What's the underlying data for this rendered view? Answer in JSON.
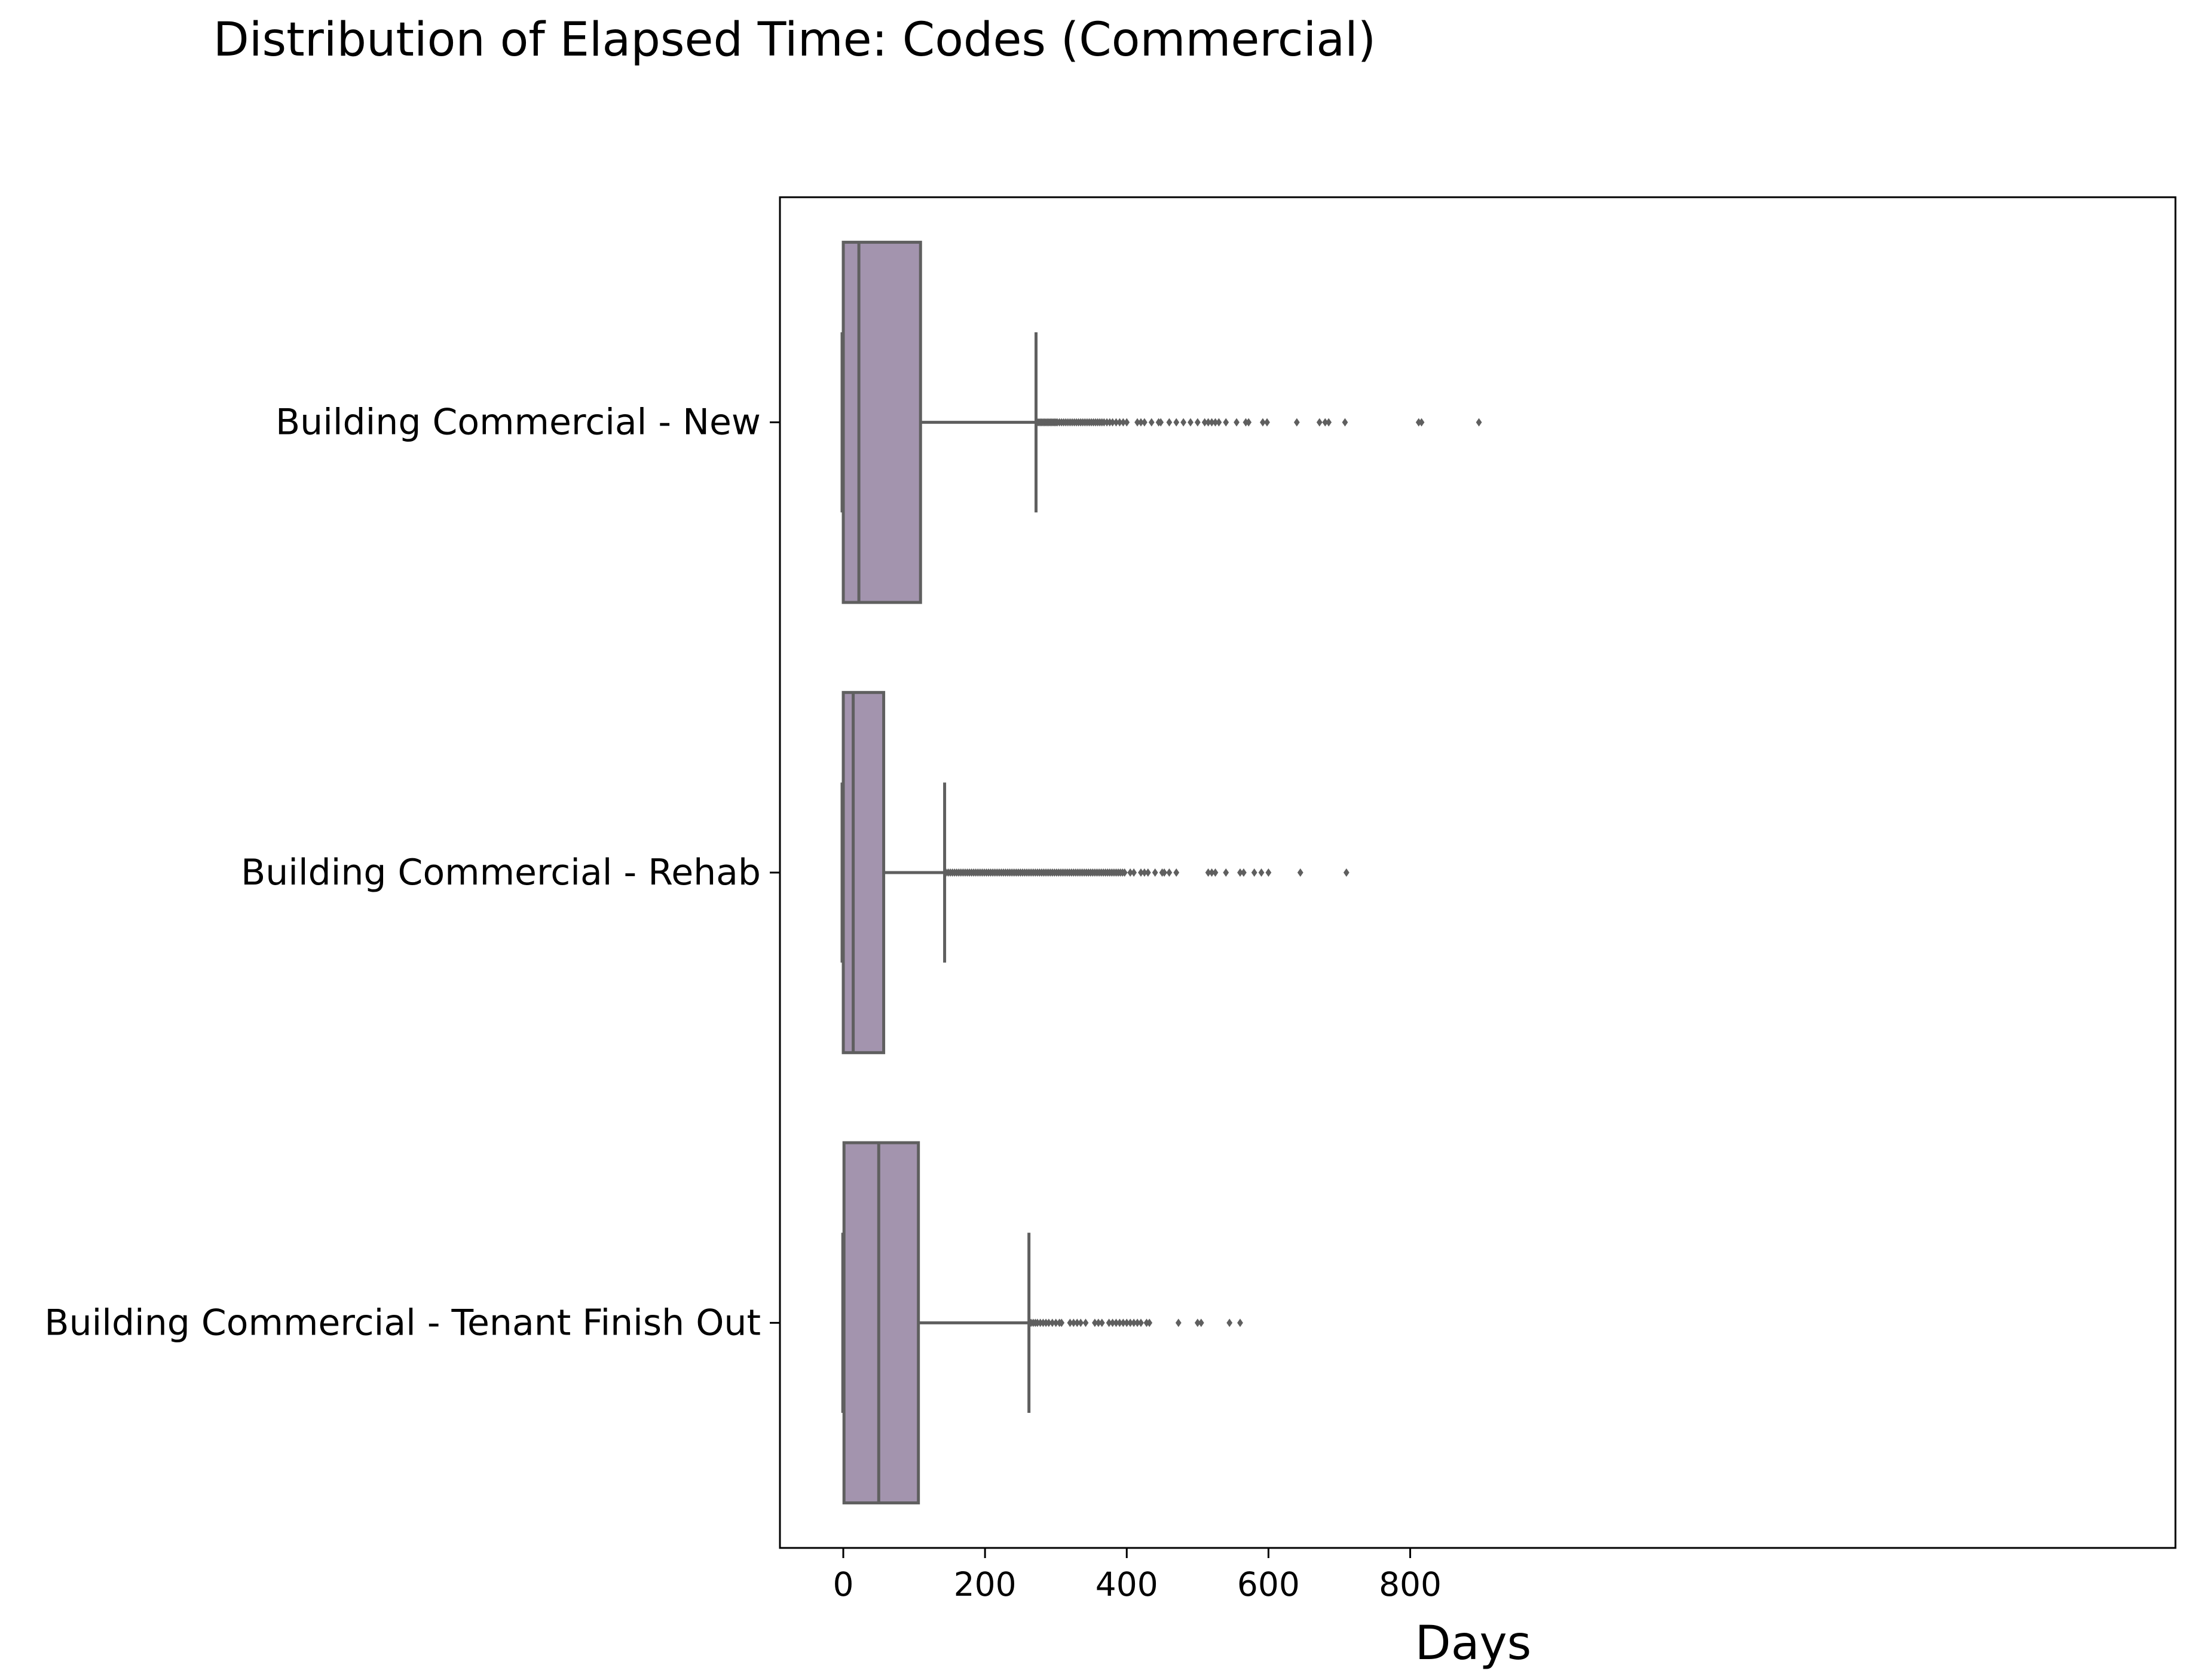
{
  "chart_data": {
    "type": "boxplot",
    "orientation": "horizontal",
    "title": "Distribution of Elapsed Time: Codes (Commercial)",
    "xlabel": "Days",
    "ylabel": "",
    "xlim": [
      -104,
      2240
    ],
    "xticks": [
      0,
      200,
      400,
      600,
      800
    ],
    "grid": false,
    "box_color": "#a394ae",
    "line_color": "#5f5f5f",
    "categories": [
      "Building Commercial - New",
      "Building Commercial - Rehab",
      "Building Commercial - Tenant Finish Out"
    ],
    "boxes": [
      {
        "label": "Building Commercial - New",
        "whislo": 0,
        "q1": 0,
        "med": 22,
        "q3": 109,
        "whishi": 272,
        "fliers": [
          274,
          276,
          278,
          280,
          282,
          284,
          286,
          288,
          290,
          292,
          294,
          296,
          298,
          300,
          302,
          305,
          308,
          311,
          314,
          317,
          320,
          323,
          326,
          329,
          332,
          335,
          338,
          341,
          344,
          347,
          350,
          353,
          356,
          359,
          362,
          365,
          368,
          372,
          376,
          380,
          385,
          390,
          395,
          400,
          415,
          420,
          425,
          435,
          445,
          448,
          460,
          470,
          480,
          490,
          500,
          510,
          515,
          520,
          525,
          530,
          540,
          555,
          568,
          572,
          592,
          598,
          640,
          672,
          680,
          685,
          708,
          812,
          816,
          897
        ]
      },
      {
        "label": "Building Commercial - Rehab",
        "whislo": 0,
        "q1": 0,
        "med": 14,
        "q3": 57,
        "whishi": 143,
        "fliers": [
          145,
          148,
          151,
          154,
          157,
          160,
          163,
          166,
          169,
          172,
          175,
          178,
          181,
          184,
          187,
          190,
          193,
          196,
          199,
          202,
          205,
          208,
          211,
          214,
          217,
          220,
          223,
          226,
          229,
          232,
          235,
          238,
          241,
          244,
          247,
          250,
          253,
          256,
          259,
          262,
          265,
          268,
          271,
          274,
          277,
          280,
          283,
          286,
          289,
          292,
          295,
          298,
          301,
          304,
          307,
          310,
          313,
          316,
          319,
          322,
          325,
          328,
          331,
          334,
          337,
          340,
          343,
          346,
          349,
          352,
          355,
          358,
          361,
          364,
          367,
          370,
          373,
          376,
          379,
          382,
          385,
          388,
          391,
          394,
          397,
          405,
          410,
          420,
          425,
          430,
          440,
          450,
          453,
          460,
          470,
          515,
          520,
          525,
          540,
          560,
          565,
          580,
          590,
          600,
          645,
          710
        ]
      },
      {
        "label": "Building Commercial - Tenant Finish Out",
        "whislo": 1,
        "q1": 1,
        "med": 50,
        "q3": 106,
        "whishi": 262,
        "fliers": [
          265,
          268,
          271,
          274,
          278,
          282,
          286,
          290,
          295,
          300,
          305,
          308,
          320,
          325,
          330,
          335,
          342,
          355,
          360,
          365,
          375,
          380,
          385,
          390,
          395,
          400,
          405,
          410,
          415,
          420,
          428,
          432,
          473,
          500,
          505,
          545,
          560
        ]
      }
    ]
  }
}
